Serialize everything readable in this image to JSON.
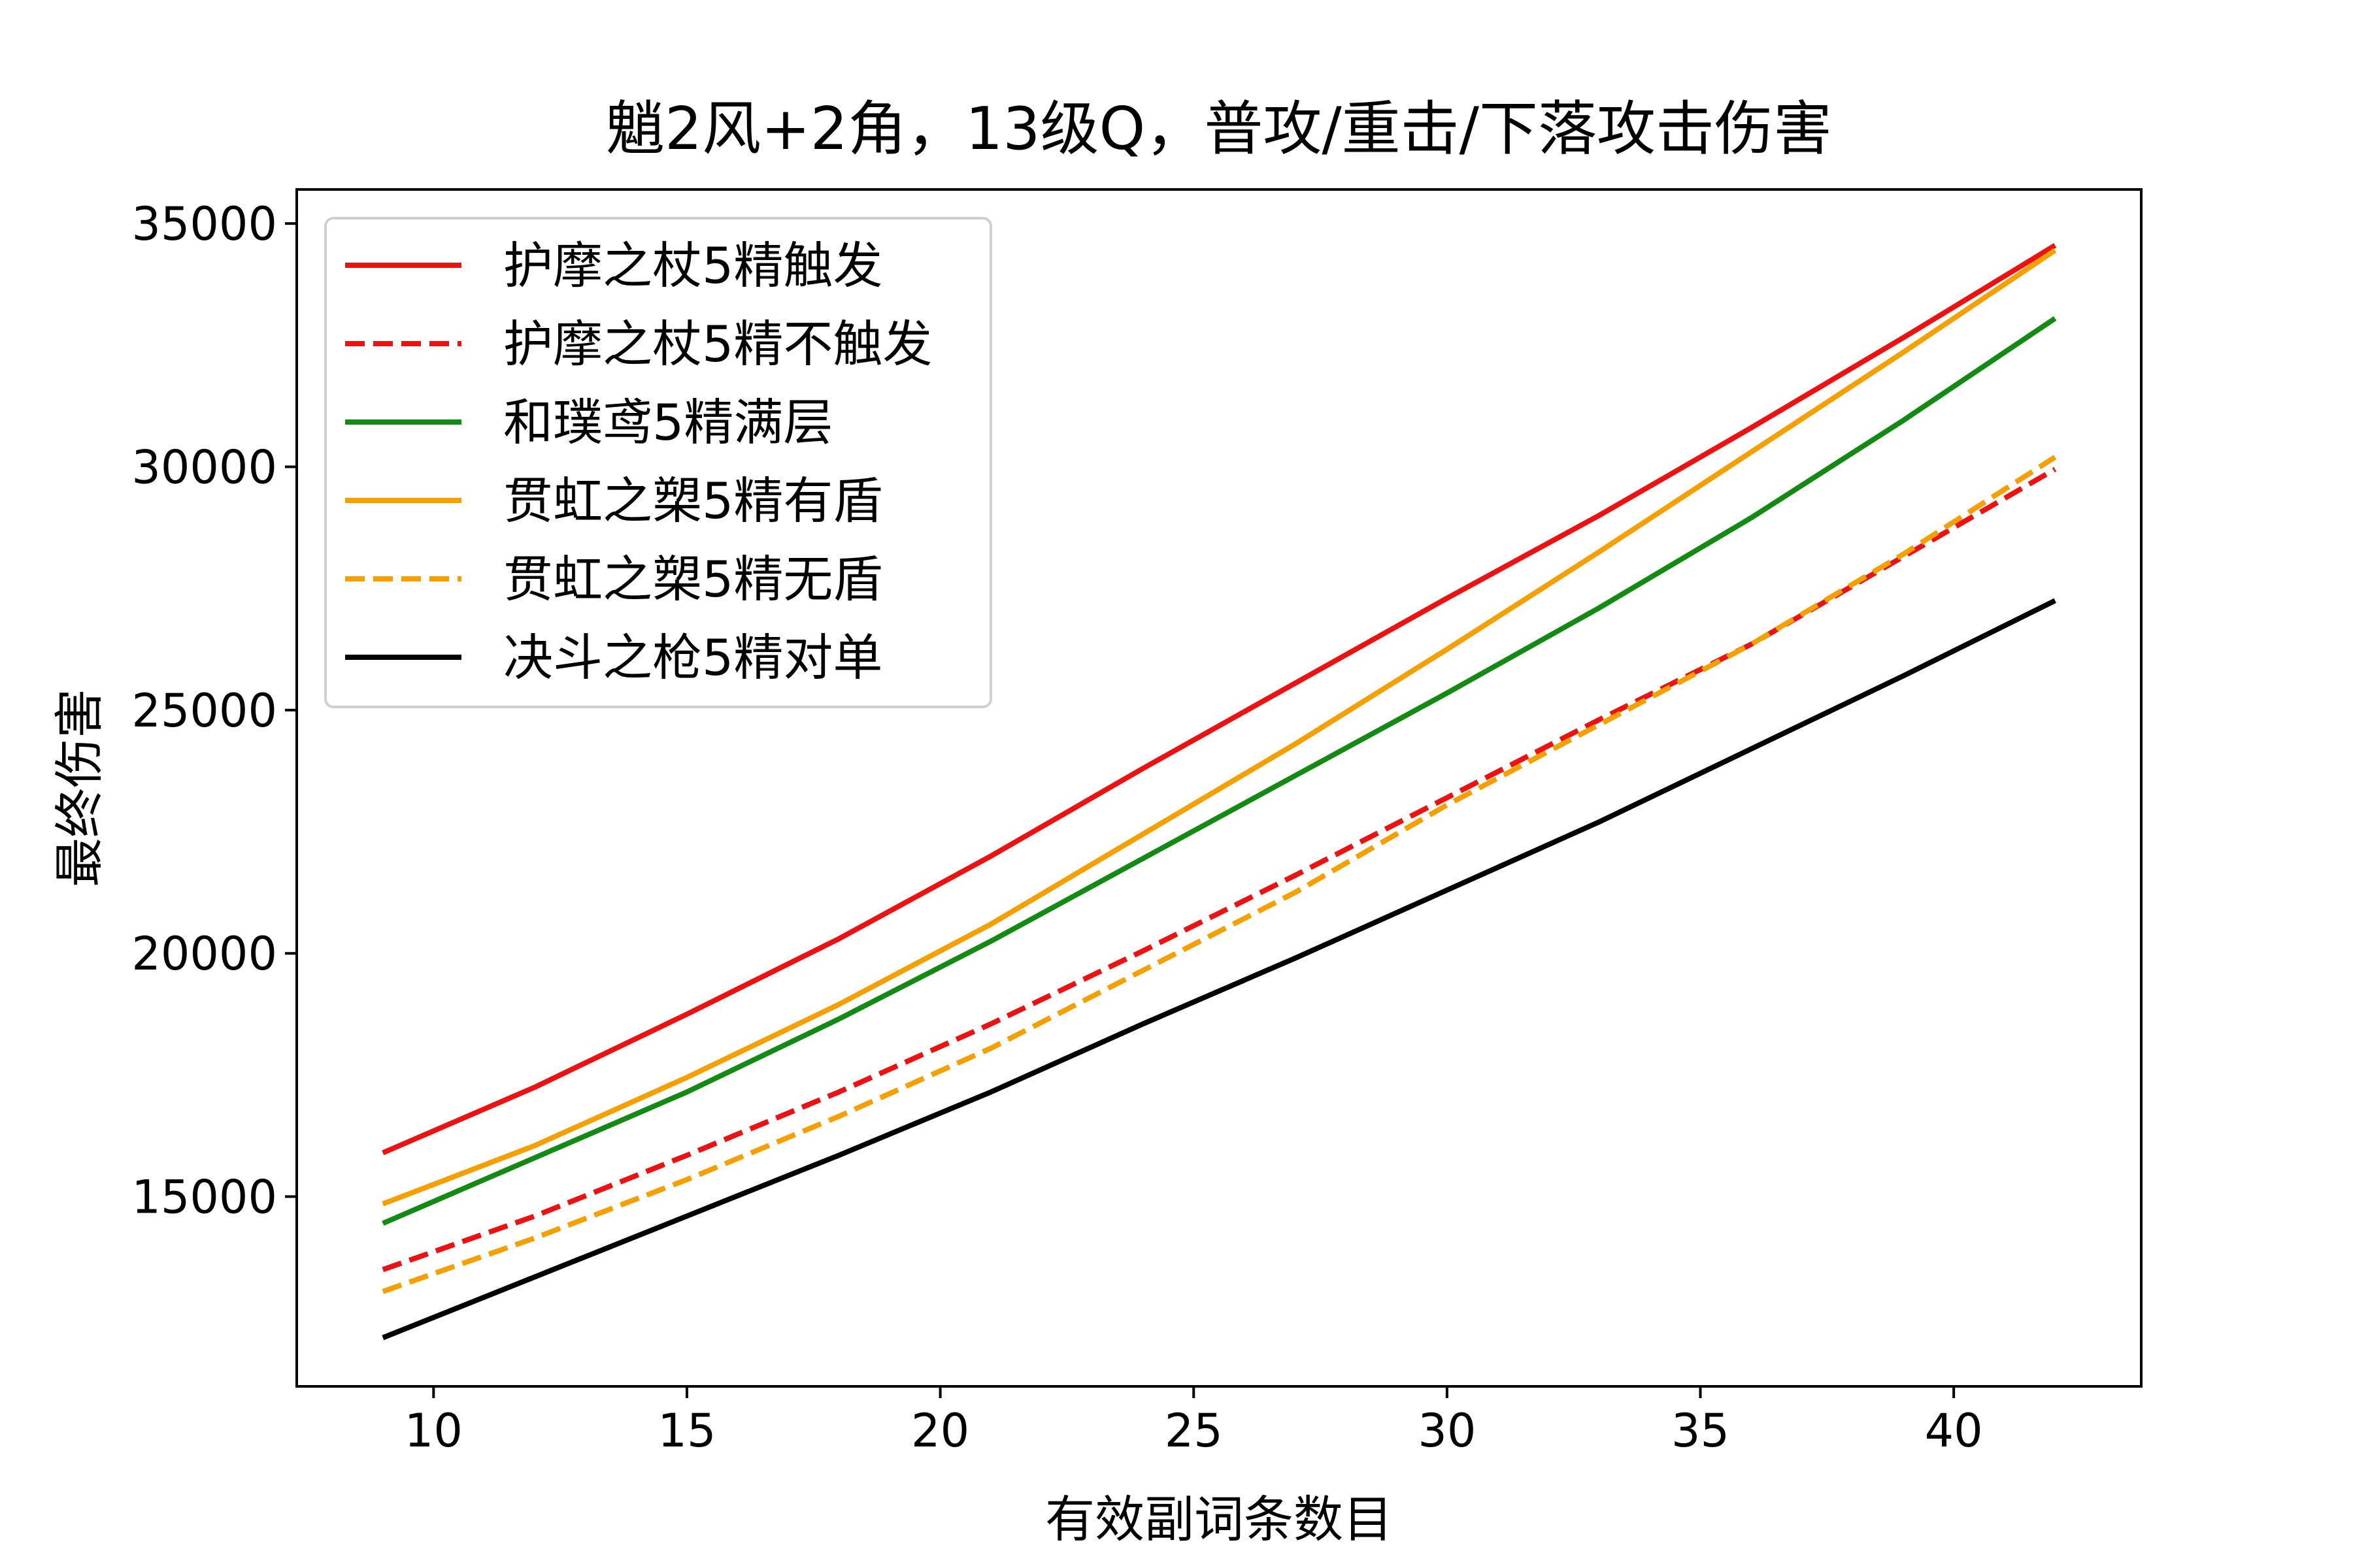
{
  "chart_data": {
    "type": "line",
    "title": "魈2风+2角，13级Q，普攻/重击/下落攻击伤害",
    "xlabel": "有效副词条数目",
    "ylabel": "最终伤害",
    "xlim": [
      7.3,
      43.7
    ],
    "ylim": [
      11100,
      35700
    ],
    "xticks": [
      10,
      15,
      20,
      25,
      30,
      35,
      40
    ],
    "yticks": [
      15000,
      20000,
      25000,
      30000,
      35000
    ],
    "grid": false,
    "legend_position": "top-left",
    "x": [
      9,
      12,
      15,
      18,
      21,
      24,
      27,
      30,
      33,
      36,
      39,
      42
    ],
    "series": [
      {
        "name": "护摩之杖5精触发",
        "color": "#ee1111",
        "dash": "solid",
        "values": [
          15900,
          17250,
          18750,
          20300,
          22000,
          23800,
          25550,
          27300,
          29000,
          30800,
          32650,
          34550
        ]
      },
      {
        "name": "护摩之杖5精不触发",
        "color": "#ee1111",
        "dash": "dashed",
        "values": [
          13500,
          14600,
          15850,
          17150,
          18550,
          20050,
          21600,
          23200,
          24800,
          26350,
          28150,
          29950
        ]
      },
      {
        "name": "和璞鸢5精满层",
        "color": "#138a13",
        "dash": "solid",
        "values": [
          14450,
          15800,
          17150,
          18650,
          20250,
          21950,
          23650,
          25350,
          27100,
          28950,
          30950,
          33050
        ]
      },
      {
        "name": "贯虹之槊5精有盾",
        "color": "#f5a000",
        "dash": "solid",
        "values": [
          14850,
          16050,
          17450,
          18950,
          20600,
          22450,
          24300,
          26250,
          28250,
          30300,
          32350,
          34450
        ]
      },
      {
        "name": "贯虹之槊5精无盾",
        "color": "#f5a000",
        "dash": "dashed",
        "values": [
          13050,
          14150,
          15350,
          16650,
          18050,
          19650,
          21250,
          23050,
          24700,
          26350,
          28200,
          30200
        ]
      },
      {
        "name": "决斗之枪5精对单",
        "color": "#000000",
        "dash": "solid",
        "values": [
          12100,
          13350,
          14600,
          15850,
          17150,
          18550,
          19900,
          21300,
          22700,
          24200,
          25700,
          27250
        ]
      }
    ]
  }
}
